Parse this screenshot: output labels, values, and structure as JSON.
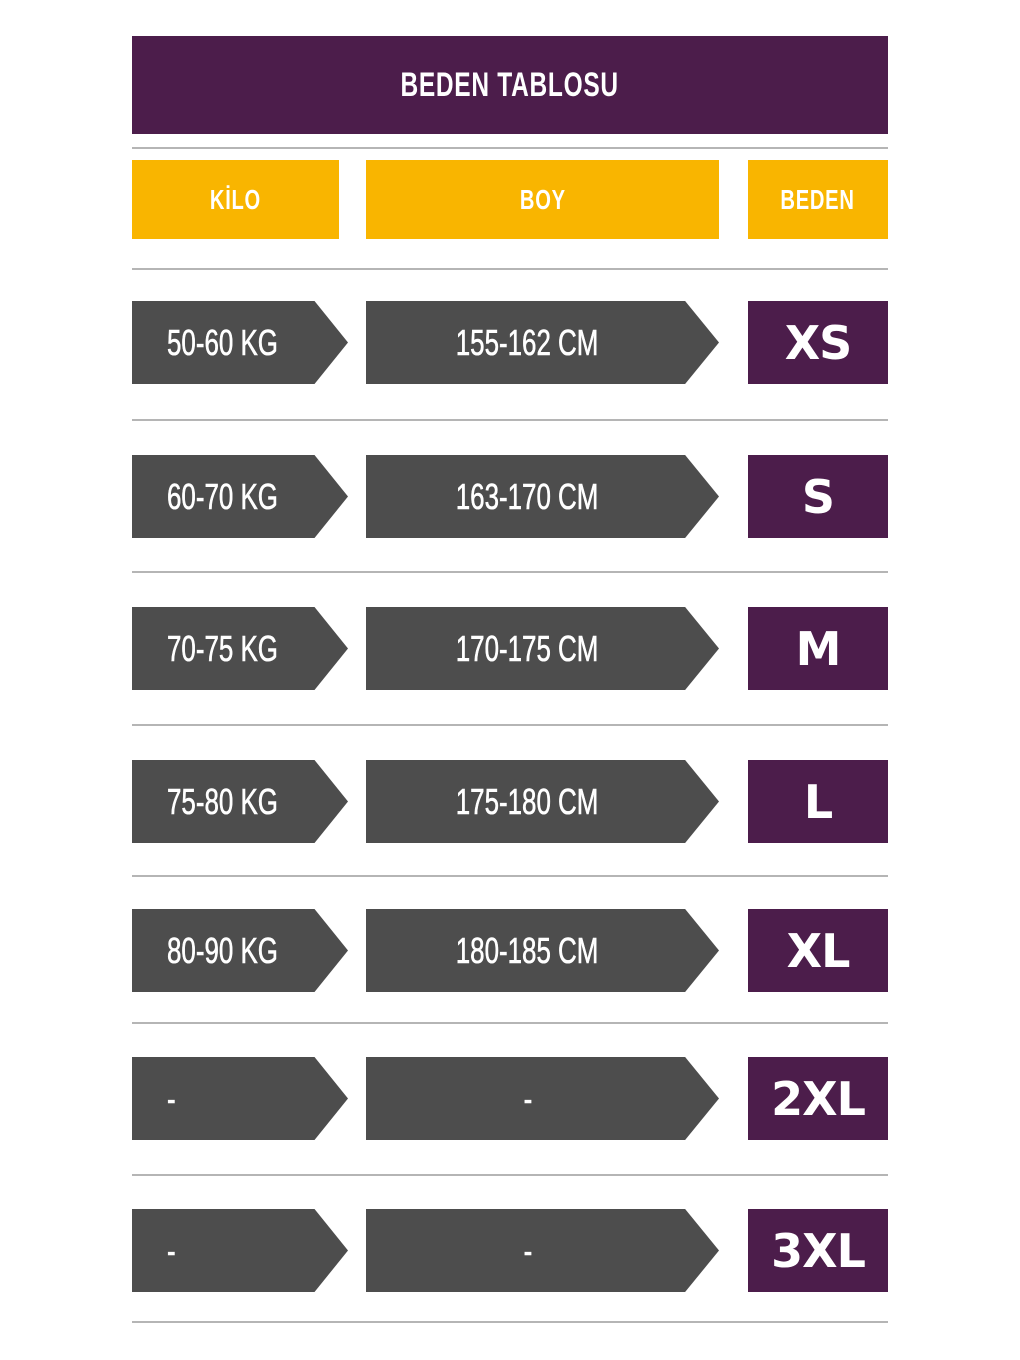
{
  "title": "BEDEN TABLOSU",
  "headers": {
    "kilo": "KİLO",
    "boy": "BOY",
    "beden": "BEDEN"
  },
  "colors": {
    "purple": "#4c1d4b",
    "yellow": "#f9b500",
    "gray": "#4d4d4d",
    "rule": "#b5b5b5"
  },
  "rows": [
    {
      "kilo": "50-60 KG",
      "boy": "155-162 CM",
      "beden": "XS"
    },
    {
      "kilo": "60-70 KG",
      "boy": "163-170 CM",
      "beden": "S"
    },
    {
      "kilo": "70-75 KG",
      "boy": "170-175 CM",
      "beden": "M"
    },
    {
      "kilo": "75-80 KG",
      "boy": "175-180 CM",
      "beden": "L"
    },
    {
      "kilo": "80-90 KG",
      "boy": "180-185 CM",
      "beden": "XL"
    },
    {
      "kilo": "-",
      "boy": "-",
      "beden": "2XL"
    },
    {
      "kilo": "-",
      "boy": "-",
      "beden": "3XL"
    }
  ]
}
